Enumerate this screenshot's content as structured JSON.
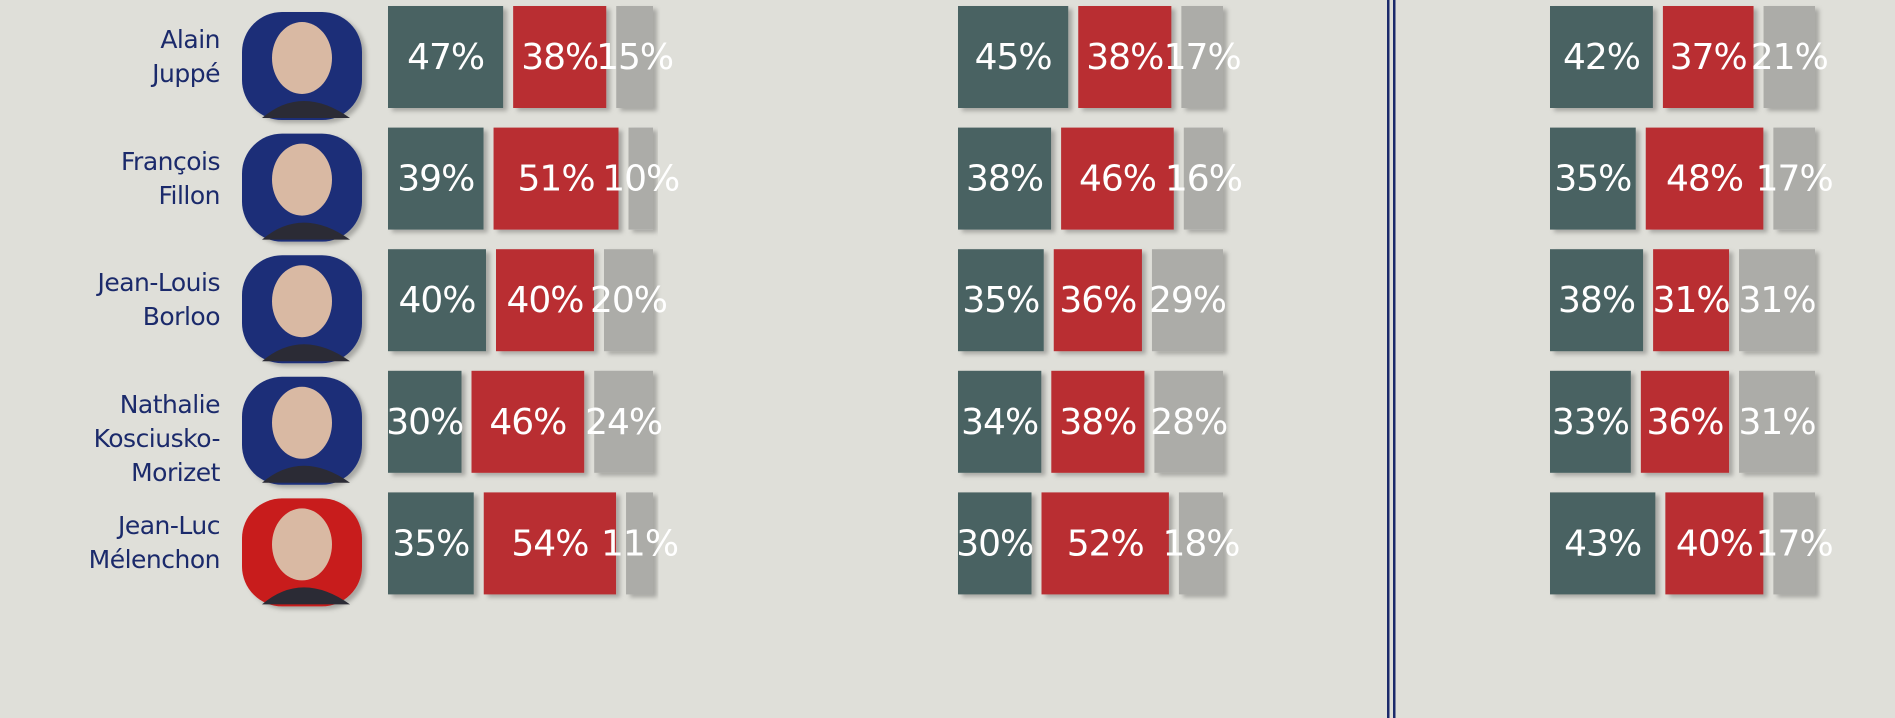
{
  "chart_data": {
    "type": "bar",
    "stacked": true,
    "orientation": "horizontal",
    "categories": [
      "Alain\nJuppé",
      "François\nFillon",
      "Jean-Louis\nBorloo",
      "Nathalie\nKosciusko-Morizet",
      "Jean-Luc\nMélenchon"
    ],
    "panels": [
      {
        "series": [
          {
            "color": "#4a6262",
            "values": [
              47,
              39,
              40,
              30,
              35
            ],
            "value_labels": [
              "47%",
              "39%",
              "40%",
              "30%",
              "35%"
            ]
          },
          {
            "color": "#b92f33",
            "values": [
              38,
              51,
              40,
              46,
              54
            ],
            "value_labels": [
              "38%",
              "51%",
              "40%",
              "46%",
              "54%"
            ]
          },
          {
            "color": "#acaca8",
            "values": [
              15,
              10,
              20,
              24,
              11
            ],
            "value_labels": [
              "15%",
              "10%",
              "20%",
              "24%",
              "11%"
            ]
          }
        ]
      },
      {
        "series": [
          {
            "color": "#4a6262",
            "values": [
              45,
              38,
              35,
              34,
              30
            ],
            "value_labels": [
              "45%",
              "38%",
              "35%",
              "34%",
              "30%"
            ]
          },
          {
            "color": "#b92f33",
            "values": [
              38,
              46,
              36,
              38,
              52
            ],
            "value_labels": [
              "38%",
              "46%",
              "36%",
              "38%",
              "52%"
            ]
          },
          {
            "color": "#acaca8",
            "values": [
              17,
              16,
              29,
              28,
              18
            ],
            "value_labels": [
              "17%",
              "16%",
              "29%",
              "28%",
              "18%"
            ]
          }
        ]
      },
      {
        "series": [
          {
            "color": "#4a6262",
            "values": [
              42,
              35,
              38,
              33,
              43
            ],
            "value_labels": [
              "42%",
              "35%",
              "38%",
              "33%",
              "43%"
            ]
          },
          {
            "color": "#b92f33",
            "values": [
              37,
              48,
              31,
              36,
              40
            ],
            "value_labels": [
              "37%",
              "48%",
              "31%",
              "36%",
              "40%"
            ]
          },
          {
            "color": "#acaca8",
            "values": [
              21,
              17,
              31,
              31,
              17
            ],
            "value_labels": [
              "21%",
              "17%",
              "31%",
              "31%",
              "17%"
            ]
          }
        ]
      }
    ]
  }
}
